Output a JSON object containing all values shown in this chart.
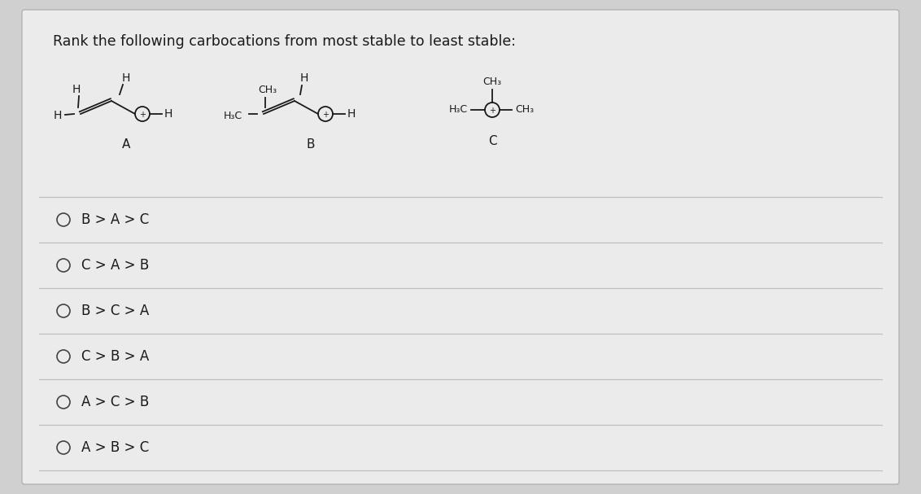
{
  "title": "Rank the following carbocations from most stable to least stable:",
  "title_fontsize": 12.5,
  "bg_color": "#d0d0d0",
  "card_color": "#ebebeb",
  "answer_options": [
    "B > A > C",
    "C > A > B",
    "B > C > A",
    "C > B > A",
    "A > C > B",
    "A > B > C"
  ],
  "option_fontsize": 12,
  "line_color": "#bbbbbb",
  "text_color": "#1a1a1a",
  "radio_color": "#444444",
  "mol_color": "#1a1a1a"
}
